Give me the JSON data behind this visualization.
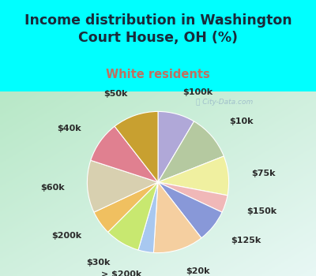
{
  "title": "Income distribution in Washington\nCourt House, OH (%)",
  "subtitle": "White residents",
  "background_color": "#00ffff",
  "chart_bg_top_right": "#f0f8f8",
  "chart_bg_bottom_left": "#c8ecd8",
  "watermark": "ⓘ City-Data.com",
  "slices": [
    {
      "label": "$100k",
      "value": 8.5,
      "color": "#b0a8d8"
    },
    {
      "label": "$10k",
      "value": 10.5,
      "color": "#b5c9a0"
    },
    {
      "label": "$75k",
      "value": 9.0,
      "color": "#f0f0a0"
    },
    {
      "label": "$150k",
      "value": 4.0,
      "color": "#f0b8b8"
    },
    {
      "label": "$125k",
      "value": 7.5,
      "color": "#8898d8"
    },
    {
      "label": "$20k",
      "value": 11.5,
      "color": "#f5cfa0"
    },
    {
      "label": "> $200k",
      "value": 3.5,
      "color": "#a8c8f0"
    },
    {
      "label": "$30k",
      "value": 8.0,
      "color": "#c8e870"
    },
    {
      "label": "$200k",
      "value": 5.5,
      "color": "#f0c060"
    },
    {
      "label": "$60k",
      "value": 12.0,
      "color": "#d8d0b0"
    },
    {
      "label": "$40k",
      "value": 9.5,
      "color": "#e08090"
    },
    {
      "label": "$50k",
      "value": 10.5,
      "color": "#c8a030"
    }
  ],
  "label_fontsize": 8.0,
  "title_fontsize": 12.5,
  "subtitle_fontsize": 10.5,
  "title_color": "#1a2a3a",
  "subtitle_color": "#c07060"
}
